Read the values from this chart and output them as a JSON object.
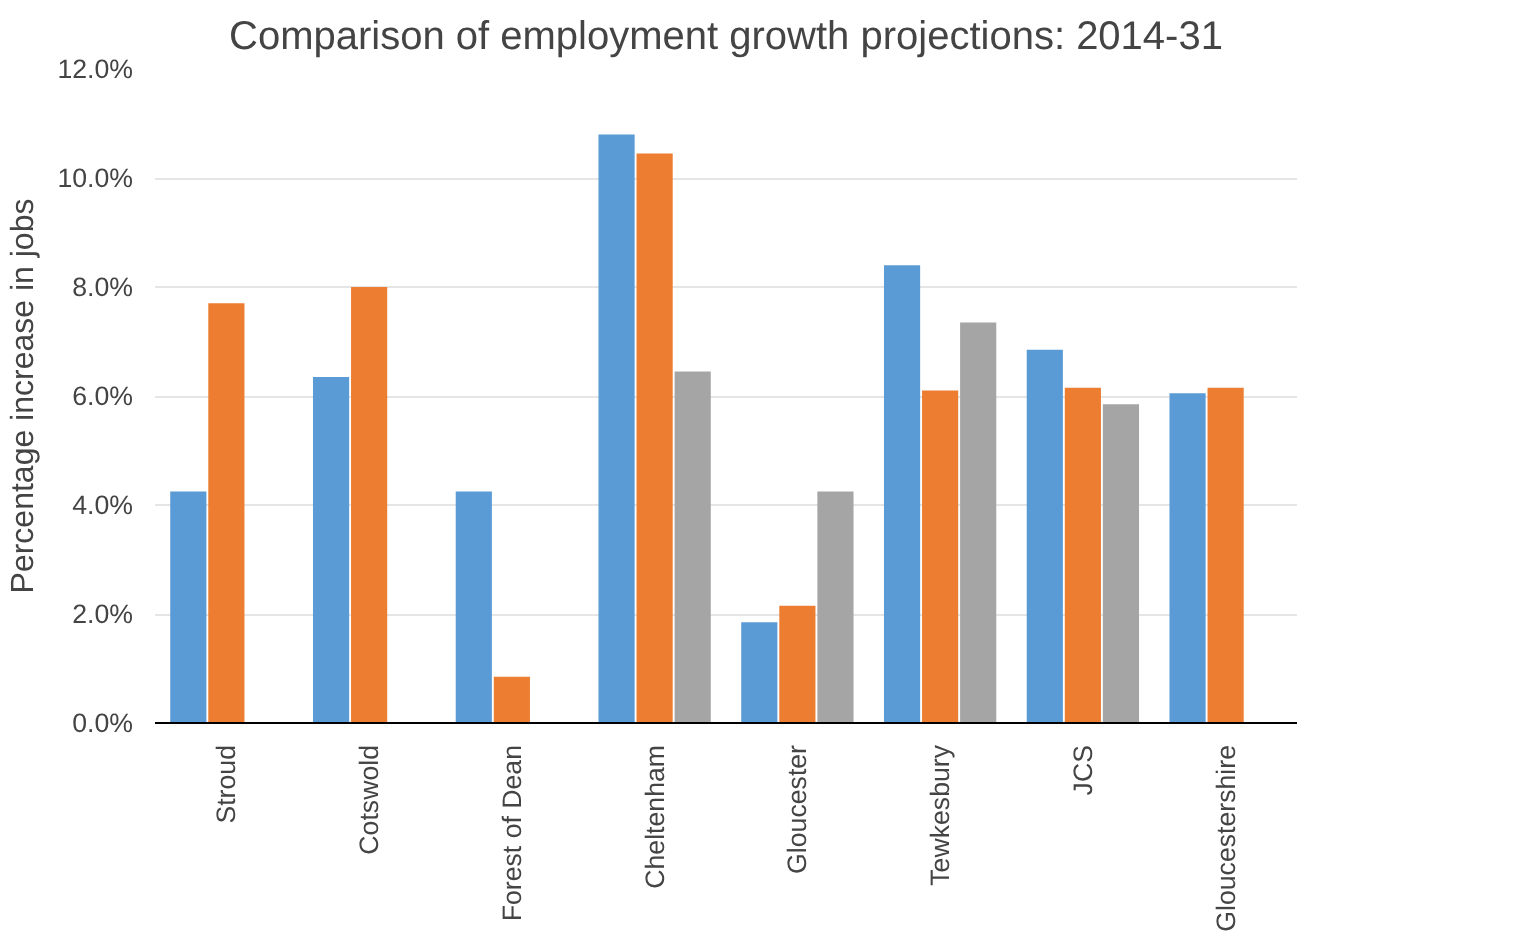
{
  "chart_data": {
    "type": "bar",
    "title": "Comparison of employment growth projections: 2014-31",
    "ylabel": "Percentage increase in jobs",
    "categories": [
      "Stroud",
      "Cotswold",
      "Forest of Dean",
      "Cheltenham",
      "Gloucester",
      "Tewkesbury",
      "JCS",
      "Gloucestershire"
    ],
    "series": [
      {
        "color": "#5b9bd5",
        "values": [
          4.25,
          6.35,
          4.25,
          10.8,
          1.85,
          8.4,
          6.85,
          6.05
        ]
      },
      {
        "color": "#ed7d31",
        "values": [
          7.7,
          8.0,
          0.85,
          10.45,
          2.15,
          6.1,
          6.15,
          6.15
        ]
      },
      {
        "color": "#a5a5a5",
        "values": [
          null,
          null,
          null,
          6.45,
          4.25,
          7.35,
          5.85,
          null
        ]
      }
    ],
    "ylim": [
      0,
      12
    ],
    "yticks": [
      {
        "value": 0,
        "label": "0.0%"
      },
      {
        "value": 2,
        "label": "2.0%"
      },
      {
        "value": 4,
        "label": "4.0%"
      },
      {
        "value": 6,
        "label": "6.0%"
      },
      {
        "value": 8,
        "label": "8.0%"
      },
      {
        "value": 10,
        "label": "10.0%"
      },
      {
        "value": 12,
        "label": "12.0%"
      }
    ],
    "grid": "y"
  }
}
